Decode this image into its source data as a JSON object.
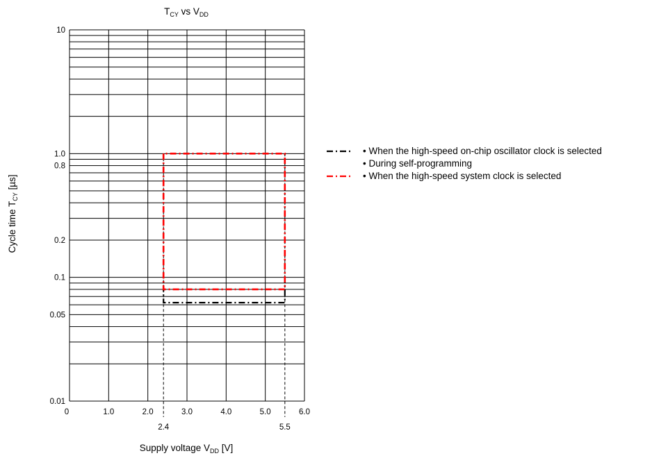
{
  "chart_data": {
    "type": "line",
    "title_main": "T",
    "title_main_sub": "CY",
    "title_vs": " vs V",
    "title_vs_sub": "DD",
    "xlabel_pre": "Supply voltage V",
    "xlabel_sub": "DD",
    "xlabel_post": " [V]",
    "ylabel_pre": "Cycle time T",
    "ylabel_sub": "CY",
    "ylabel_post": " [µs]",
    "x_scale": "linear",
    "xlim": [
      0,
      6.0
    ],
    "y_scale": "log",
    "ylim": [
      0.01,
      10
    ],
    "grid": true,
    "x_ticks": [
      {
        "value": 0,
        "label": "0"
      },
      {
        "value": 1.0,
        "label": "1.0"
      },
      {
        "value": 2.0,
        "label": "2.0"
      },
      {
        "value": 3.0,
        "label": "3.0"
      },
      {
        "value": 4.0,
        "label": "4.0"
      },
      {
        "value": 5.0,
        "label": "5.0"
      },
      {
        "value": 6.0,
        "label": "6.0"
      }
    ],
    "x_marker_ticks": [
      {
        "value": 2.4,
        "label": "2.4"
      },
      {
        "value": 5.5,
        "label": "5.5"
      }
    ],
    "y_ticks": [
      {
        "value": 10,
        "label": "10"
      },
      {
        "value": 1.0,
        "label": "1.0"
      },
      {
        "value": 0.8,
        "label": "0.8"
      },
      {
        "value": 0.2,
        "label": "0.2"
      },
      {
        "value": 0.1,
        "label": "0.1"
      },
      {
        "value": 0.05,
        "label": "0.05"
      },
      {
        "value": 0.01,
        "label": "0.01"
      }
    ],
    "series": [
      {
        "color": "#000000",
        "line_style": "dash-dot",
        "legend_lines": [
          "• When the high-speed on-chip oscillator clock is selected",
          "• During self-programming"
        ],
        "x": [
          2.4,
          2.4,
          5.5,
          5.5
        ],
        "y": [
          1.0,
          0.0625,
          0.0625,
          1.0
        ]
      },
      {
        "color": "#ff0000",
        "line_style": "dash-dot",
        "legend_lines": [
          "• When the high-speed system clock is selected"
        ],
        "x": [
          2.4,
          2.4,
          5.5,
          5.5,
          2.4
        ],
        "y": [
          1.0,
          0.08,
          0.08,
          1.0,
          1.0
        ]
      }
    ],
    "legend_position": "right"
  }
}
